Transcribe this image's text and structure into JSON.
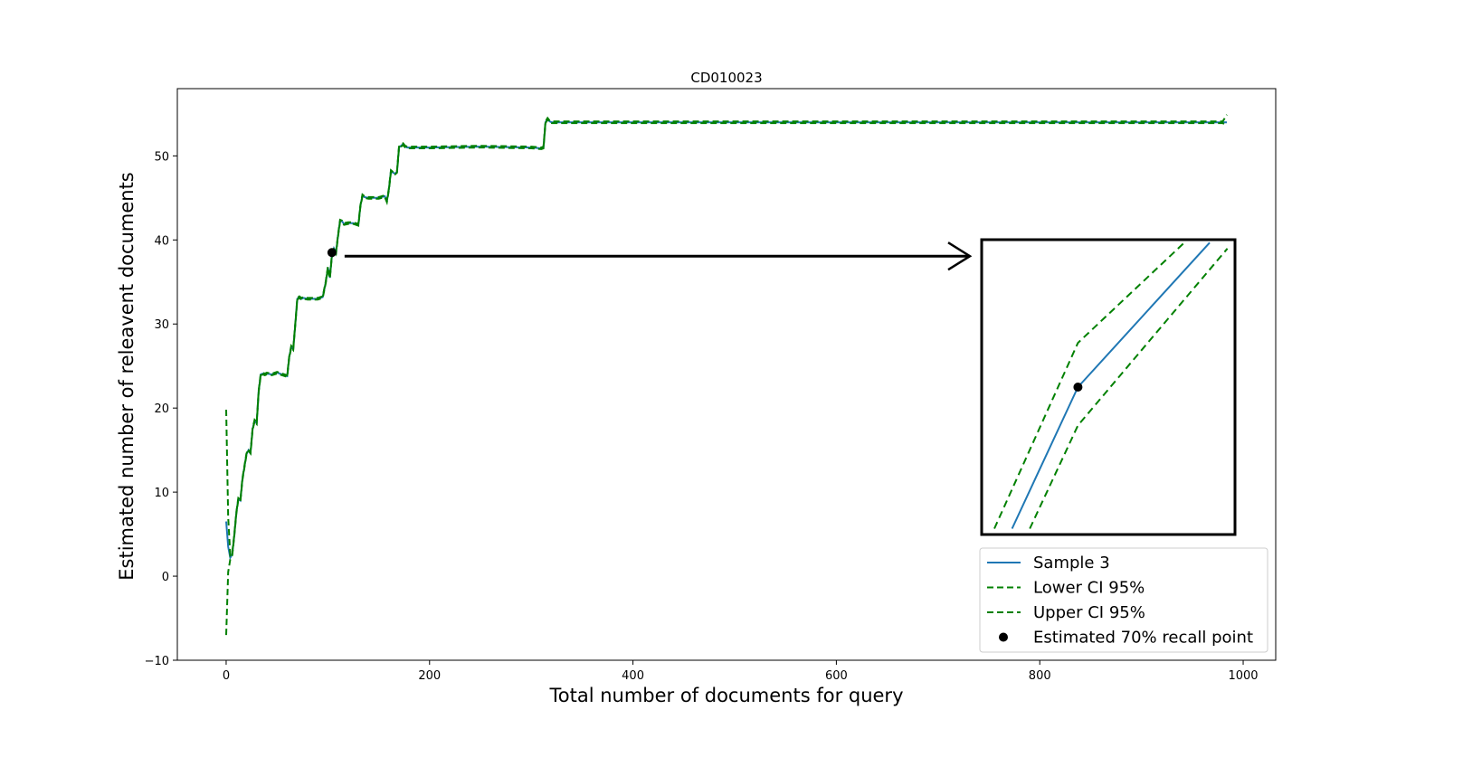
{
  "chart_data": {
    "type": "line",
    "title": "CD010023",
    "xlabel": "Total number of documents for query",
    "ylabel": "Estimated number of releavent documents",
    "xlim": [
      -48,
      1032
    ],
    "ylim": [
      -10,
      58
    ],
    "xticks": [
      0,
      200,
      400,
      600,
      800,
      1000
    ],
    "yticks": [
      -10,
      0,
      10,
      20,
      30,
      40,
      50
    ],
    "xtick_labels": [
      "0",
      "200",
      "400",
      "600",
      "800",
      "1000"
    ],
    "ytick_labels": [
      "−10",
      "0",
      "10",
      "20",
      "30",
      "40",
      "50"
    ],
    "grid": false,
    "legend_position": "lower-right",
    "series": [
      {
        "name": "Sample 3",
        "style": "solid",
        "color": "#1f77b4",
        "x": [
          0,
          2,
          4,
          6,
          8,
          10,
          12,
          14,
          16,
          20,
          22,
          24,
          26,
          28,
          30,
          32,
          34,
          36,
          38,
          40,
          45,
          50,
          55,
          60,
          62,
          64,
          66,
          68,
          70,
          72,
          74,
          76,
          80,
          90,
          95,
          98,
          100,
          102,
          104,
          106,
          108,
          110,
          112,
          114,
          116,
          120,
          125,
          130,
          132,
          134,
          136,
          140,
          150,
          156,
          158,
          160,
          162,
          164,
          166,
          168,
          170,
          174,
          176,
          178,
          180,
          184,
          200,
          250,
          300,
          310,
          312,
          314,
          316,
          318,
          320,
          330,
          400,
          500,
          600,
          700,
          800,
          900,
          980,
          984
        ],
        "y": [
          6.5,
          3.5,
          2.2,
          2.6,
          4.8,
          7.5,
          9.2,
          9.0,
          11.5,
          14.5,
          15.0,
          14.7,
          17.5,
          18.5,
          18.2,
          22.0,
          24.0,
          24.1,
          24.0,
          24.1,
          24.0,
          24.2,
          24.0,
          23.8,
          26.0,
          27.3,
          27.0,
          30.0,
          33.0,
          33.2,
          33.0,
          33.1,
          33.0,
          33.0,
          33.2,
          35.0,
          36.7,
          35.5,
          38.2,
          39.0,
          38.5,
          40.5,
          42.3,
          42.2,
          41.9,
          42.0,
          42.0,
          41.8,
          44.0,
          45.3,
          45.1,
          45.0,
          45.0,
          45.2,
          44.6,
          46.0,
          48.2,
          48.0,
          47.9,
          48.1,
          51.0,
          51.4,
          51.1,
          51.0,
          51.0,
          51.0,
          51.0,
          51.1,
          51.0,
          50.9,
          51.0,
          54.0,
          54.4,
          54.1,
          54.0,
          54.0,
          54.0,
          54.0,
          54.0,
          54.0,
          54.0,
          54.0,
          54.0,
          54.0
        ]
      },
      {
        "name": "Lower CI 95%",
        "style": "dashed",
        "color": "#008000",
        "x": [
          0,
          2,
          4,
          6,
          8,
          10,
          12,
          14,
          16,
          20,
          22,
          24,
          26,
          28,
          30,
          32,
          34,
          36,
          38,
          40,
          45,
          50,
          55,
          60,
          62,
          64,
          66,
          68,
          70,
          72,
          74,
          76,
          80,
          90,
          95,
          98,
          100,
          102,
          104,
          106,
          108,
          110,
          112,
          114,
          116,
          120,
          125,
          130,
          132,
          134,
          136,
          140,
          150,
          156,
          158,
          160,
          162,
          164,
          166,
          168,
          170,
          174,
          176,
          178,
          180,
          184,
          200,
          250,
          300,
          310,
          312,
          314,
          316,
          318,
          320,
          330,
          400,
          500,
          600,
          700,
          800,
          900,
          980,
          984
        ],
        "y": [
          -7.0,
          0.5,
          2.0,
          2.5,
          4.7,
          7.4,
          9.1,
          8.9,
          11.4,
          14.4,
          14.9,
          14.6,
          17.4,
          18.4,
          18.1,
          21.9,
          23.9,
          24.0,
          23.9,
          24.0,
          23.9,
          24.1,
          23.9,
          23.7,
          25.9,
          27.2,
          26.9,
          29.9,
          32.9,
          33.1,
          32.9,
          33.0,
          32.9,
          32.9,
          33.1,
          34.9,
          36.6,
          35.4,
          38.1,
          38.9,
          38.4,
          40.4,
          42.2,
          42.1,
          41.8,
          41.9,
          41.9,
          41.7,
          43.9,
          45.2,
          45.0,
          44.9,
          44.9,
          45.1,
          44.5,
          45.9,
          48.1,
          47.9,
          47.8,
          48.0,
          50.9,
          51.3,
          51.0,
          50.9,
          50.9,
          50.9,
          50.9,
          51.0,
          50.9,
          50.8,
          50.9,
          53.9,
          54.3,
          54.0,
          53.9,
          53.9,
          53.9,
          53.9,
          53.9,
          53.9,
          53.9,
          53.9,
          53.9,
          53.6
        ]
      },
      {
        "name": "Upper CI 95%",
        "style": "dashed",
        "color": "#008000",
        "x": [
          0,
          2,
          4,
          6,
          8,
          10,
          12,
          14,
          16,
          20,
          22,
          24,
          26,
          28,
          30,
          32,
          34,
          36,
          38,
          40,
          45,
          50,
          55,
          60,
          62,
          64,
          66,
          68,
          70,
          72,
          74,
          76,
          80,
          90,
          95,
          98,
          100,
          102,
          104,
          106,
          108,
          110,
          112,
          114,
          116,
          120,
          125,
          130,
          132,
          134,
          136,
          140,
          150,
          156,
          158,
          160,
          162,
          164,
          166,
          168,
          170,
          174,
          176,
          178,
          180,
          184,
          200,
          250,
          300,
          310,
          312,
          314,
          316,
          318,
          320,
          330,
          400,
          500,
          600,
          700,
          800,
          900,
          980,
          984
        ],
        "y": [
          19.8,
          7.0,
          2.5,
          2.8,
          4.9,
          7.6,
          9.3,
          9.1,
          11.6,
          14.6,
          15.1,
          14.8,
          17.6,
          18.6,
          18.3,
          22.1,
          24.1,
          24.2,
          24.1,
          24.2,
          24.1,
          24.3,
          24.1,
          23.9,
          26.1,
          27.4,
          27.1,
          30.1,
          33.1,
          33.3,
          33.1,
          33.2,
          33.1,
          33.1,
          33.3,
          35.1,
          36.8,
          35.6,
          38.3,
          39.1,
          38.6,
          40.6,
          42.4,
          42.3,
          42.0,
          42.1,
          42.1,
          41.9,
          44.1,
          45.4,
          45.2,
          45.1,
          45.1,
          45.3,
          44.7,
          46.1,
          48.3,
          48.1,
          48.0,
          48.2,
          51.1,
          51.5,
          51.2,
          51.1,
          51.1,
          51.1,
          51.1,
          51.2,
          51.1,
          51.0,
          51.1,
          54.1,
          54.5,
          54.2,
          54.1,
          54.1,
          54.1,
          54.1,
          54.1,
          54.1,
          54.1,
          54.1,
          54.1,
          54.9
        ]
      }
    ],
    "recall_point": {
      "name": "Estimated 70% recall point",
      "x": 104,
      "y": 38.5,
      "color": "#000000"
    },
    "inset": {
      "description_free": true,
      "sample": [
        [
          0.12,
          0.02
        ],
        [
          0.38,
          0.5
        ],
        [
          0.9,
          0.99
        ]
      ],
      "lower": [
        [
          0.05,
          0.02
        ],
        [
          0.38,
          0.65
        ],
        [
          0.8,
          0.99
        ]
      ],
      "upper": [
        [
          0.19,
          0.02
        ],
        [
          0.38,
          0.37
        ],
        [
          0.97,
          0.97
        ]
      ],
      "point": [
        0.38,
        0.5
      ]
    }
  }
}
